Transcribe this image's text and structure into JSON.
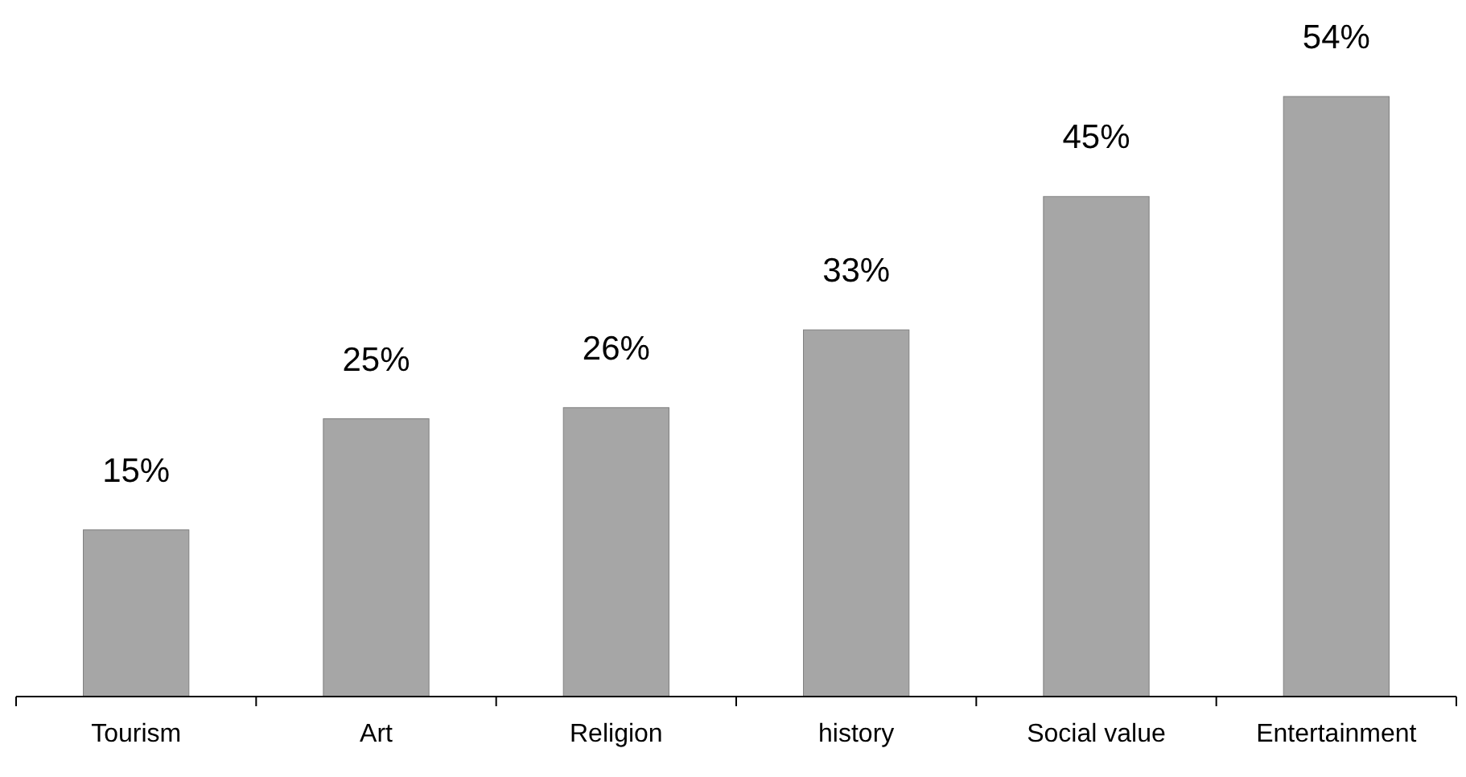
{
  "chart_data": {
    "type": "bar",
    "categories": [
      "Tourism",
      "Art",
      "Religion",
      "history",
      "Social value",
      "Entertainment"
    ],
    "values": [
      15,
      25,
      26,
      33,
      45,
      54
    ],
    "value_labels": [
      "15%",
      "25%",
      "26%",
      "33%",
      "45%",
      "54%"
    ],
    "color": "#a6a6a6"
  }
}
